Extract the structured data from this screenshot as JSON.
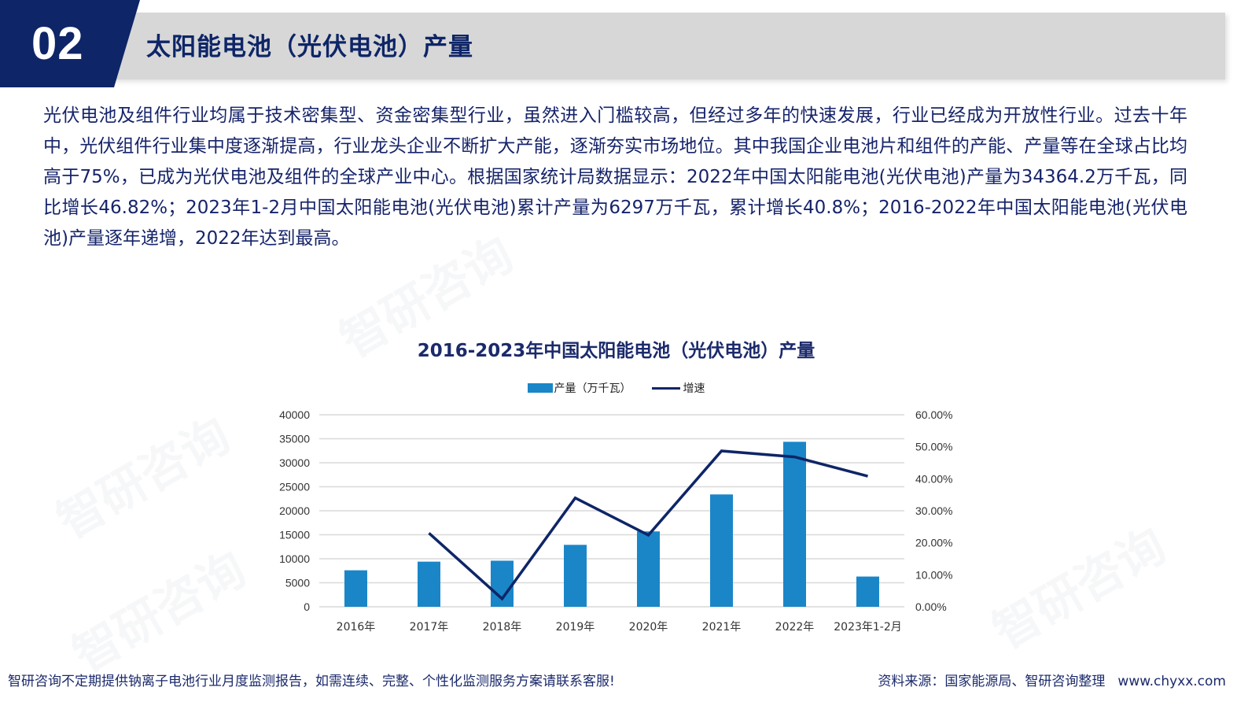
{
  "header": {
    "section_number": "02",
    "title": "太阳能电池（光伏电池）产量"
  },
  "body": {
    "paragraph": "光伏电池及组件行业均属于技术密集型、资金密集型行业，虽然进入门槛较高，但经过多年的快速发展，行业已经成为开放性行业。过去十年中，光伏组件行业集中度逐渐提高，行业龙头企业不断扩大产能，逐渐夯实市场地位。其中我国企业电池片和组件的产能、产量等在全球占比均高于75%，已成为光伏电池及组件的全球产业中心。根据国家统计局数据显示：2022年中国太阳能电池(光伏电池)产量为34364.2万千瓦，同比增长46.82%；2023年1-2月中国太阳能电池(光伏电池)累计产量为6297万千瓦，累计增长40.8%；2016-2022年中国太阳能电池(光伏电池)产量逐年递增，2022年达到最高。"
  },
  "watermark": {
    "text": "智研咨询"
  },
  "colors": {
    "bar": "#1a86c8",
    "line": "#0e2567",
    "header_dark": "#0e2567",
    "header_gray": "#d7d7d7",
    "grid": "#d9d9d9"
  },
  "chart_data": {
    "type": "bar",
    "title": "2016-2023年中国太阳能电池（光伏电池）产量",
    "categories": [
      "2016年",
      "2017年",
      "2018年",
      "2019年",
      "2020年",
      "2021年",
      "2022年",
      "2023年1-2月"
    ],
    "series": [
      {
        "name": "产量（万千瓦）",
        "type": "bar",
        "axis": "left",
        "values": [
          7600,
          9400,
          9600,
          12900,
          15700,
          23400,
          34364.2,
          6297
        ]
      },
      {
        "name": "增速",
        "type": "line",
        "axis": "right",
        "values": [
          null,
          0.23,
          0.025,
          0.34,
          0.224,
          0.487,
          0.4682,
          0.408
        ]
      }
    ],
    "left_axis": {
      "ylim": [
        0,
        40000
      ],
      "ticks": [
        "0",
        "5000",
        "10000",
        "15000",
        "20000",
        "25000",
        "30000",
        "35000",
        "40000"
      ]
    },
    "right_axis": {
      "ylim": [
        0,
        0.6
      ],
      "ticks": [
        "0.00%",
        "10.00%",
        "20.00%",
        "30.00%",
        "40.00%",
        "50.00%",
        "60.00%"
      ]
    },
    "legend_position": "top",
    "grid": true,
    "xlabel": "",
    "ylabel": ""
  },
  "footer": {
    "notice": "智研咨询不定期提供钠离子电池行业月度监测报告，如需连续、完整、个性化监测服务方案请联系客服!",
    "source": "资料来源：国家能源局、智研咨询整理",
    "url": "www.chyxx.com"
  }
}
